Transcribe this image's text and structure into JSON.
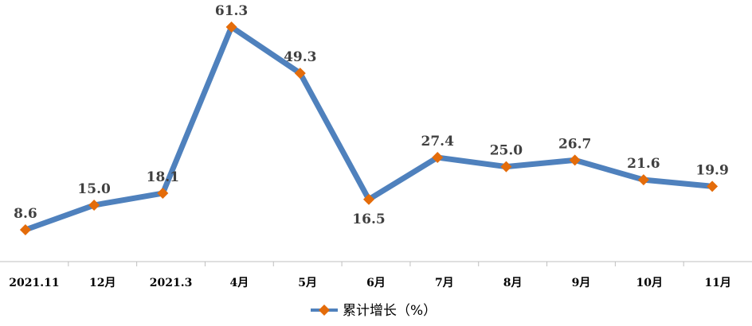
{
  "chart_data": {
    "type": "line",
    "categories": [
      "2021.11",
      "12月",
      "2021.3",
      "4月",
      "5月",
      "6月",
      "7月",
      "8月",
      "9月",
      "10月",
      "11月"
    ],
    "series": [
      {
        "name": "累计增长（%）",
        "values": [
          8.6,
          15.0,
          18.1,
          61.3,
          49.3,
          16.5,
          27.4,
          25.0,
          26.7,
          21.6,
          19.9
        ],
        "labels": [
          "8.6",
          "15.0",
          "18.1",
          "61.3",
          "49.3",
          "16.5",
          "27.4",
          "25.0",
          "26.7",
          "21.6",
          "19.9"
        ]
      }
    ],
    "ylim": [
      0,
      68
    ],
    "grid": false,
    "legend_position": "bottom",
    "line_color": "#4F81BD",
    "marker_color": "#E46C0A",
    "marker_shape": "diamond"
  }
}
